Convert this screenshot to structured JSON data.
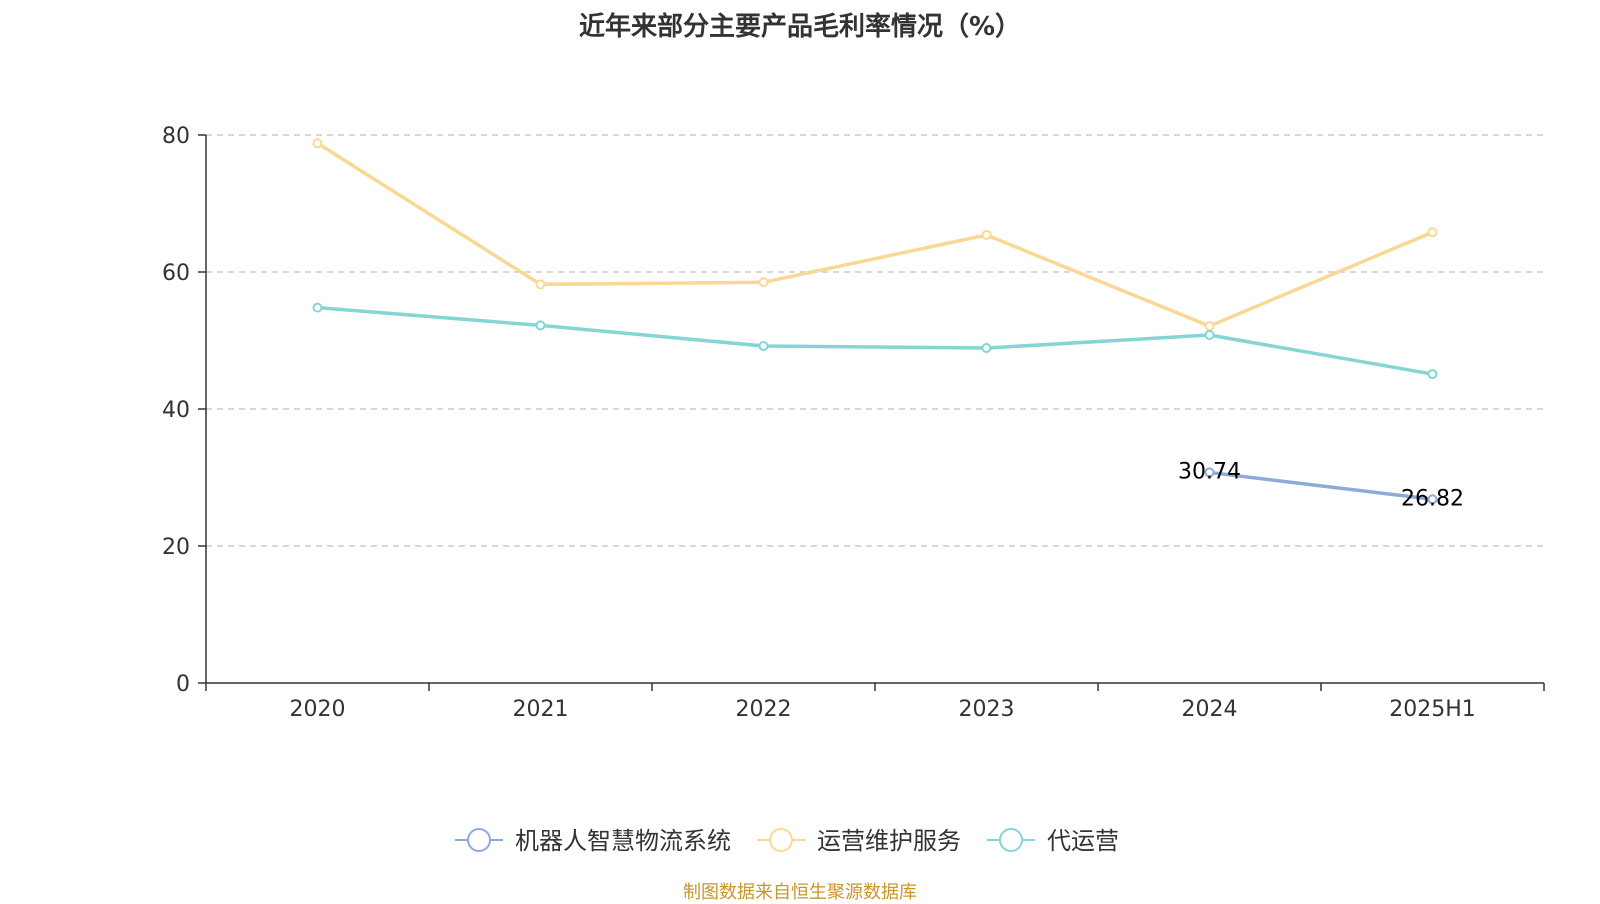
{
  "chart_data": {
    "type": "line",
    "title": "近年来部分主要产品毛利率情况（%）",
    "categories": [
      "2020",
      "2021",
      "2022",
      "2023",
      "2024",
      "2025H1"
    ],
    "ylim": [
      0,
      80
    ],
    "yticks": [
      0,
      20,
      40,
      60,
      80
    ],
    "grid": true,
    "legend_position": "bottom",
    "series": [
      {
        "name": "机器人智慧物流系统",
        "color": "#8eaad8",
        "values": [
          null,
          null,
          null,
          null,
          30.74,
          26.82
        ],
        "labels": [
          "",
          "",
          "",
          "",
          "30.74",
          "26.82"
        ]
      },
      {
        "name": "运营维护服务",
        "color": "#fad894",
        "values": [
          78.8,
          58.2,
          58.5,
          65.4,
          52.1,
          65.8
        ],
        "labels": [
          "",
          "",
          "",
          "",
          "",
          ""
        ]
      },
      {
        "name": "代运营",
        "color": "#85d5d4",
        "values": [
          54.8,
          52.2,
          49.2,
          48.9,
          50.8,
          45.1
        ],
        "labels": [
          "",
          "",
          "",
          "",
          "",
          ""
        ]
      }
    ]
  },
  "source_note": "制图数据来自恒生聚源数据库"
}
